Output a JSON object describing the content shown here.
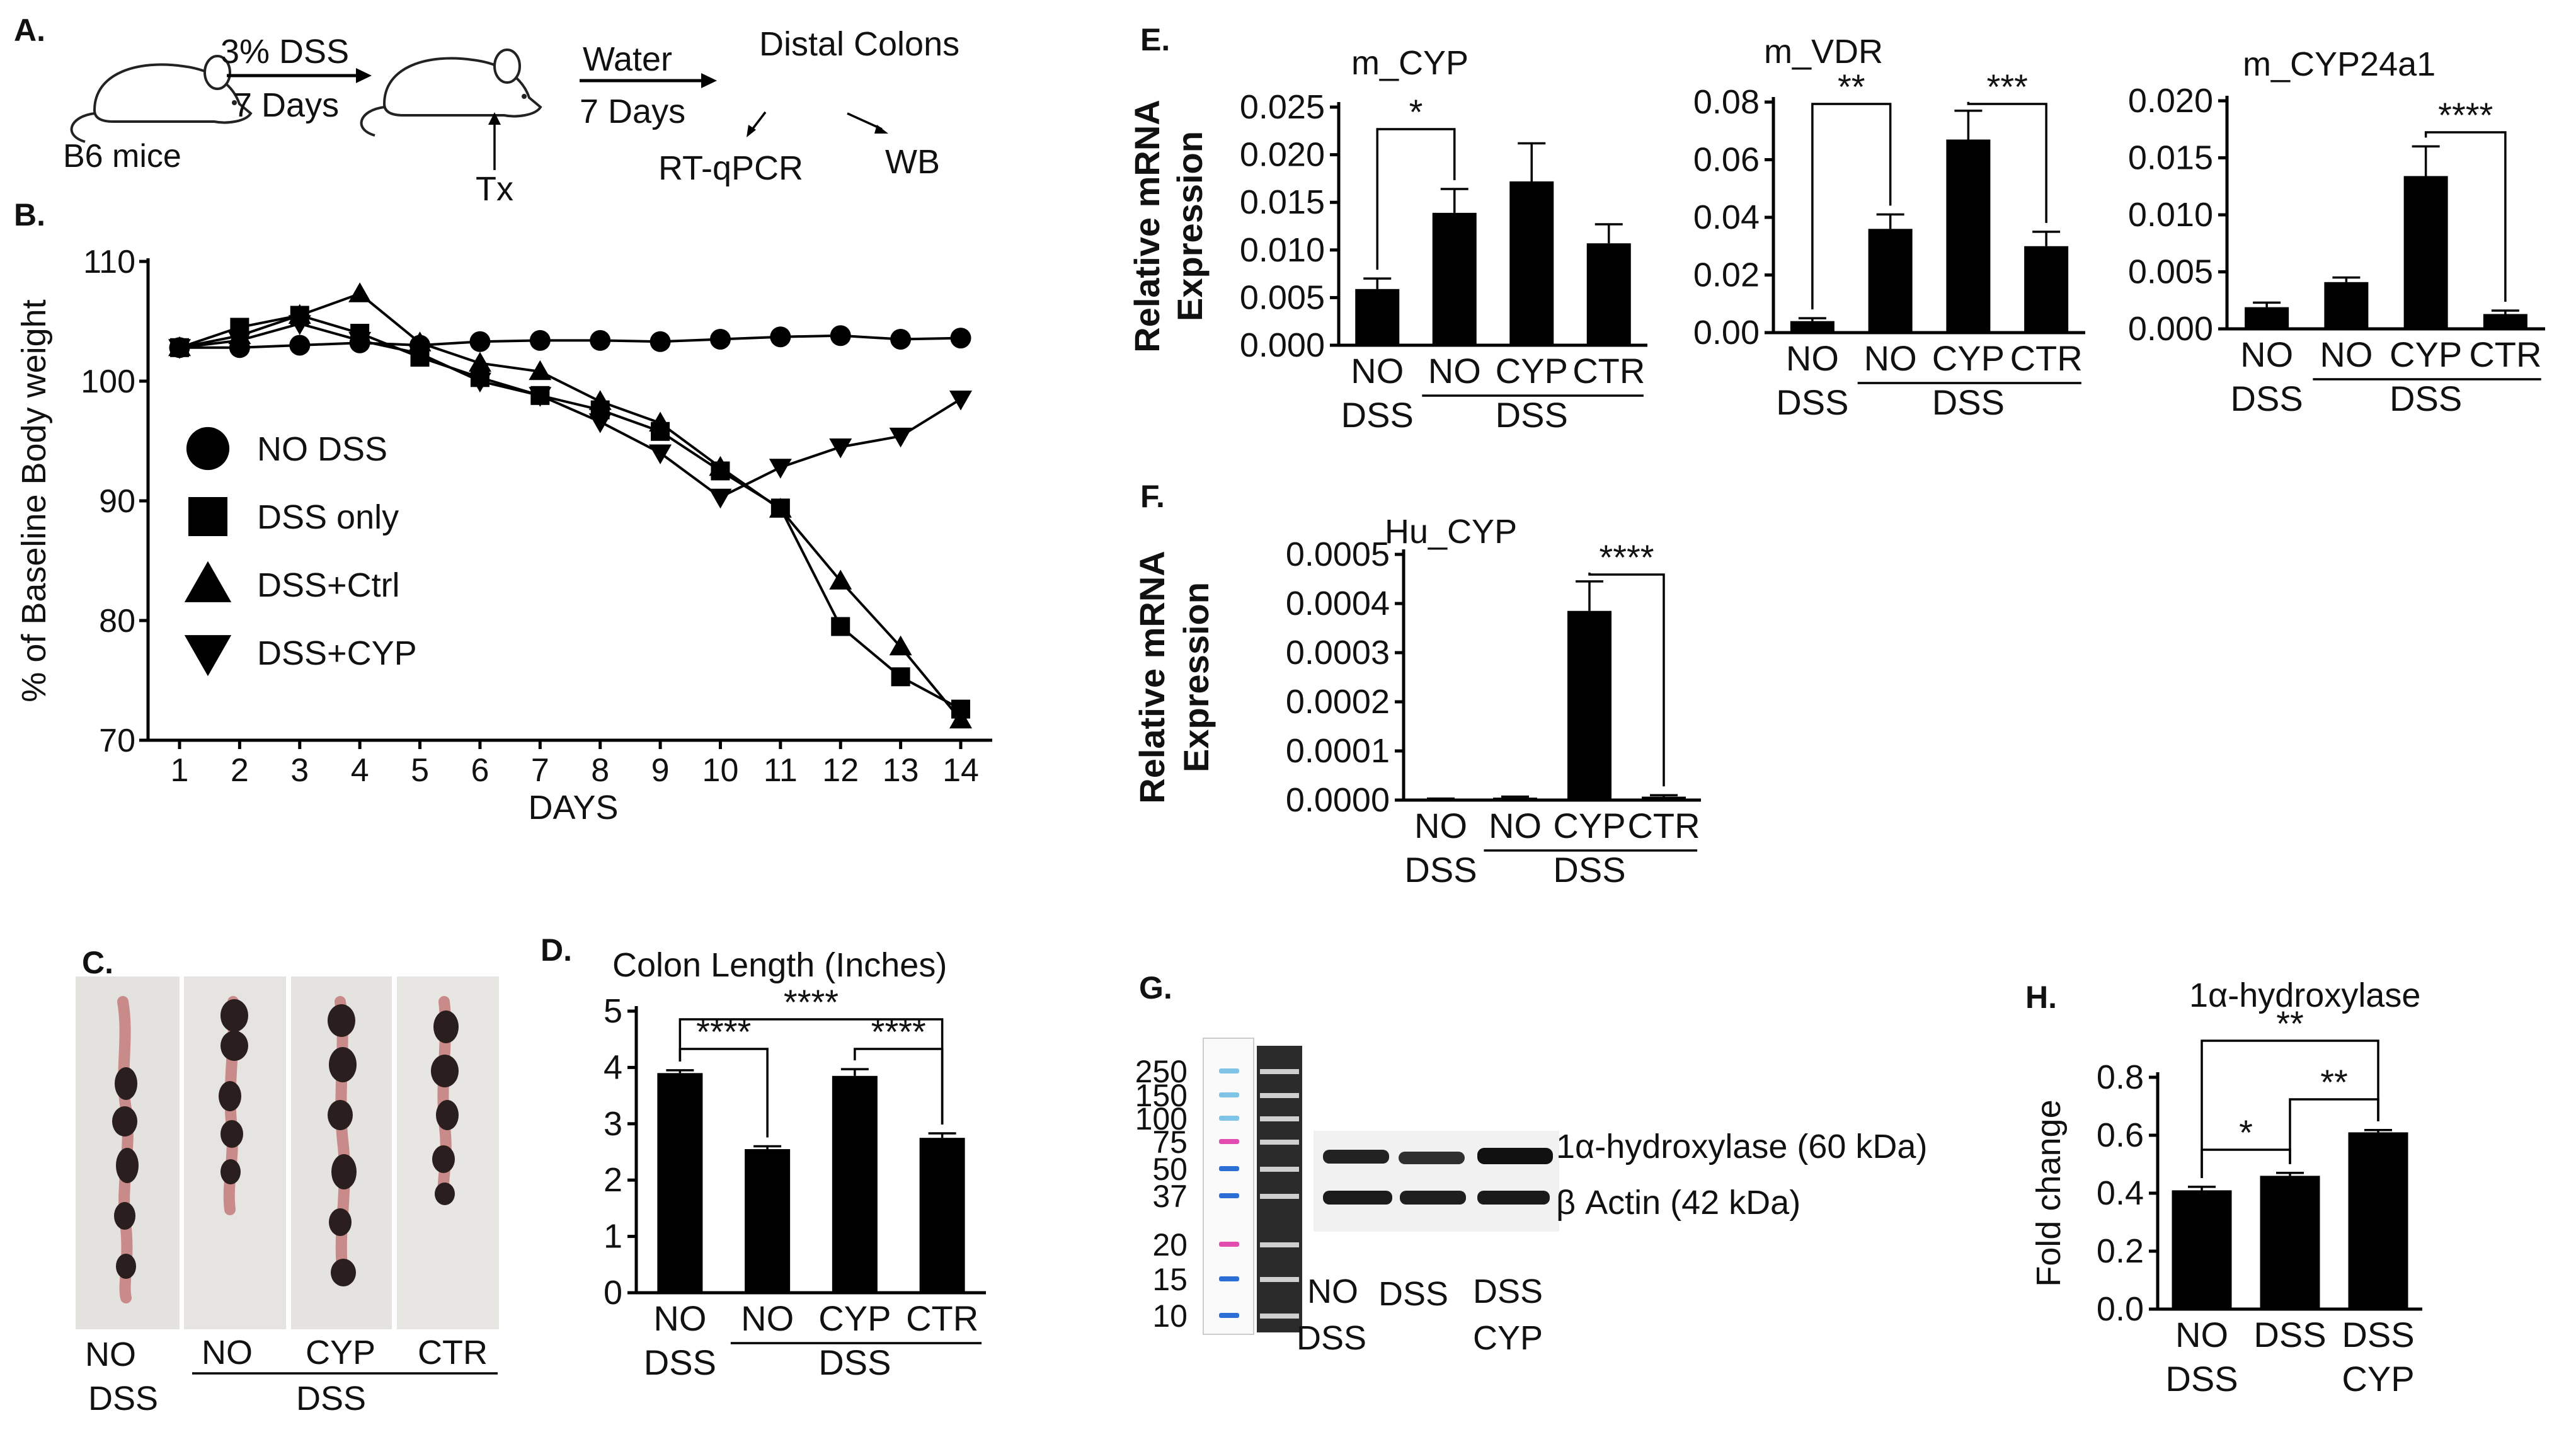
{
  "panels": {
    "A": {
      "letter": "A.",
      "mouse_label": "B6 mice",
      "arrow1_top": "3% DSS",
      "arrow1_bottom": "7 Days",
      "tx_label": "Tx",
      "arrow2_top": "Water",
      "arrow2_bottom": "7 Days",
      "distal_colons": "Distal Colons",
      "rtqpcr": "RT-qPCR",
      "wb": "WB"
    },
    "B": {
      "letter": "B."
    },
    "C": {
      "letter": "C.",
      "labels": [
        "NO",
        "NO",
        "CYP",
        "CTR"
      ],
      "label_sub": "DSS",
      "group": "DSS"
    },
    "D": {
      "letter": "D."
    },
    "E": {
      "letter": "E."
    },
    "F": {
      "letter": "F."
    },
    "G": {
      "letter": "G.",
      "ladder_marks": [
        "250",
        "150",
        "100",
        "75",
        "50",
        "37",
        "20",
        "15",
        "10"
      ],
      "band1_label": "1α-hydroxylase (60 kDa)",
      "band2_label": "β Actin (42 kDa)",
      "lanes": [
        {
          "l1": "NO",
          "l2": "DSS"
        },
        {
          "l1": "DSS",
          "l2": ""
        },
        {
          "l1": "DSS",
          "l2": "CYP"
        }
      ]
    },
    "H": {
      "letter": "H."
    }
  },
  "chart_data": [
    {
      "id": "B",
      "type": "line",
      "title": "",
      "xlabel": "DAYS",
      "ylabel": "% of Baseline Body weight",
      "x": [
        1,
        2,
        3,
        4,
        5,
        6,
        7,
        8,
        9,
        10,
        11,
        12,
        13,
        14
      ],
      "ylim": [
        70,
        110
      ],
      "yticks": [
        70,
        80,
        90,
        100,
        110
      ],
      "series": [
        {
          "name": "NO DSS",
          "marker": "circle",
          "values": [
            102.8,
            102.8,
            103,
            103.2,
            103,
            103.3,
            103.4,
            103.4,
            103.3,
            103.5,
            103.7,
            103.8,
            103.5,
            103.6
          ]
        },
        {
          "name": "DSS only",
          "marker": "square",
          "values": [
            102.8,
            104.5,
            105.5,
            104,
            102,
            100.3,
            98.8,
            97.6,
            95.8,
            92.5,
            89.4,
            79.5,
            75.3,
            72.6
          ]
        },
        {
          "name": "DSS+Ctrl",
          "marker": "triangle-up",
          "values": [
            102.8,
            103.8,
            105.5,
            107.3,
            103.2,
            101.5,
            100.8,
            98.3,
            96.5,
            92.8,
            89.3,
            83.3,
            77.8,
            71.7
          ]
        },
        {
          "name": "DSS+CYP",
          "marker": "triangle-down",
          "values": [
            102.8,
            103.4,
            104.8,
            103.4,
            102.3,
            100,
            98.8,
            96.6,
            94,
            90.3,
            92.8,
            94.5,
            95.4,
            98.5
          ]
        }
      ]
    },
    {
      "id": "D",
      "type": "bar",
      "title": "Colon Length (Inches)",
      "ylim": [
        0,
        5
      ],
      "yticks": [
        "0",
        "1",
        "2",
        "3",
        "4",
        "5"
      ],
      "categories": [
        {
          "l1": "NO",
          "l2": "DSS"
        },
        {
          "l1": "NO",
          "l2": ""
        },
        {
          "l1": "CYP",
          "l2": ""
        },
        {
          "l1": "CTR",
          "l2": ""
        }
      ],
      "group_label": "DSS",
      "values": [
        3.9,
        2.55,
        3.85,
        2.75
      ],
      "errors": [
        0.05,
        0.05,
        0.12,
        0.08
      ],
      "brackets": [
        {
          "from": 0,
          "to": 1,
          "label": "****"
        },
        {
          "from": 0,
          "to": 3,
          "label": "****"
        },
        {
          "from": 2,
          "to": 3,
          "label": "****"
        }
      ]
    },
    {
      "id": "E1",
      "type": "bar",
      "title": "m_CYP",
      "ylabel": "Relative mRNA Expression",
      "ylim": [
        0,
        0.025
      ],
      "yticks": [
        "0.000",
        "0.005",
        "0.010",
        "0.015",
        "0.020",
        "0.025"
      ],
      "categories": [
        {
          "l1": "NO",
          "l2": "DSS"
        },
        {
          "l1": "NO",
          "l2": ""
        },
        {
          "l1": "CYP",
          "l2": ""
        },
        {
          "l1": "CTR",
          "l2": ""
        }
      ],
      "group_label": "DSS",
      "values": [
        0.0059,
        0.0139,
        0.0172,
        0.0107
      ],
      "errors": [
        0.0011,
        0.0025,
        0.004,
        0.002
      ],
      "brackets": [
        {
          "from": 0,
          "to": 1,
          "label": "*"
        }
      ]
    },
    {
      "id": "E2",
      "type": "bar",
      "title": "m_VDR",
      "ylim": [
        0,
        0.08
      ],
      "yticks": [
        "0.00",
        "0.02",
        "0.04",
        "0.06",
        "0.08"
      ],
      "categories": [
        {
          "l1": "NO",
          "l2": "DSS"
        },
        {
          "l1": "NO",
          "l2": ""
        },
        {
          "l1": "CYP",
          "l2": ""
        },
        {
          "l1": "CTR",
          "l2": ""
        }
      ],
      "group_label": "DSS",
      "values": [
        0.004,
        0.036,
        0.067,
        0.03
      ],
      "errors": [
        0.001,
        0.005,
        0.01,
        0.005
      ],
      "brackets": [
        {
          "from": 0,
          "to": 1,
          "label": "**"
        },
        {
          "from": 2,
          "to": 3,
          "label": "***"
        }
      ]
    },
    {
      "id": "E3",
      "type": "bar",
      "title": "m_CYP24a1",
      "ylim": [
        0,
        0.02
      ],
      "yticks": [
        "0.000",
        "0.005",
        "0.010",
        "0.015",
        "0.020"
      ],
      "categories": [
        {
          "l1": "NO",
          "l2": "DSS"
        },
        {
          "l1": "NO",
          "l2": ""
        },
        {
          "l1": "CYP",
          "l2": ""
        },
        {
          "l1": "CTR",
          "l2": ""
        }
      ],
      "group_label": "DSS",
      "values": [
        0.0019,
        0.0041,
        0.0134,
        0.0013
      ],
      "errors": [
        0.0004,
        0.0004,
        0.0026,
        0.0003
      ],
      "brackets": [
        {
          "from": 2,
          "to": 3,
          "label": "****"
        }
      ]
    },
    {
      "id": "F",
      "type": "bar",
      "title": "Hu_CYP",
      "ylabel": "Relative mRNA Expression",
      "ylim": [
        0,
        0.0005
      ],
      "yticks": [
        "0.0000",
        "0.0001",
        "0.0002",
        "0.0003",
        "0.0004",
        "0.0005"
      ],
      "categories": [
        {
          "l1": "NO",
          "l2": "DSS"
        },
        {
          "l1": "NO",
          "l2": ""
        },
        {
          "l1": "CYP",
          "l2": ""
        },
        {
          "l1": "CTR",
          "l2": ""
        }
      ],
      "group_label": "DSS",
      "values": [
        2e-06,
        5e-06,
        0.000385,
        7e-06
      ],
      "errors": [
        1e-06,
        2e-06,
        6e-05,
        3e-06
      ],
      "brackets": [
        {
          "from": 2,
          "to": 3,
          "label": "****"
        }
      ]
    },
    {
      "id": "H",
      "type": "bar",
      "title": "1α-hydroxylase",
      "ylabel": "Fold change",
      "ylim": [
        0,
        0.8
      ],
      "yticks": [
        "0.0",
        "0.2",
        "0.4",
        "0.6",
        "0.8"
      ],
      "categories": [
        {
          "l1": "NO",
          "l2": "DSS"
        },
        {
          "l1": "DSS",
          "l2": ""
        },
        {
          "l1": "DSS",
          "l2": "CYP"
        }
      ],
      "group_label": "",
      "values": [
        0.41,
        0.46,
        0.61
      ],
      "errors": [
        0.012,
        0.01,
        0.008
      ],
      "brackets": [
        {
          "from": 0,
          "to": 1,
          "label": "*"
        },
        {
          "from": 1,
          "to": 2,
          "label": "**"
        },
        {
          "from": 0,
          "to": 2,
          "label": "**"
        }
      ]
    }
  ]
}
